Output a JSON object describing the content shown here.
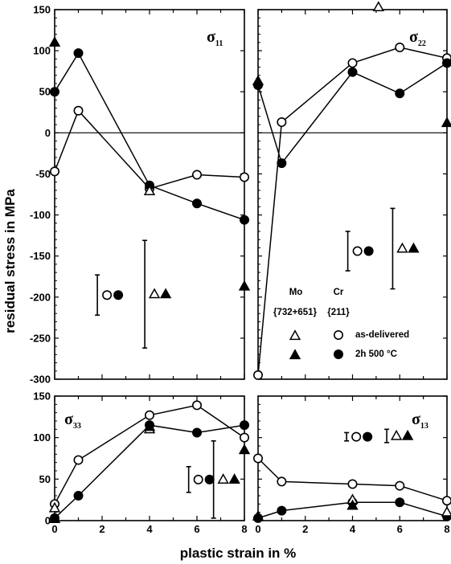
{
  "figure": {
    "ylabel": "residual stress in MPa",
    "xlabel": "plastic strain in %"
  },
  "legend": {
    "col1_header": "Mo",
    "col1_sub": "{732+651}",
    "col2_header": "Cr",
    "col2_sub": "{211}",
    "row1_label": "as-delivered",
    "row2_label": "2h   500 °C"
  },
  "chart_data": [
    {
      "type": "line",
      "panel": "sigma11",
      "title": "σ",
      "title_sub": "11",
      "xlim": [
        0,
        8
      ],
      "ylim": [
        -300,
        150
      ],
      "xticks": [],
      "yticks": [
        150,
        100,
        50,
        0,
        -50,
        -100,
        -150,
        -200,
        -250,
        -300
      ],
      "series": [
        {
          "marker": "open-circle",
          "line": true,
          "x": [
            0,
            1,
            4,
            6,
            8
          ],
          "y": [
            -47,
            27,
            -68,
            -51,
            -54
          ]
        },
        {
          "marker": "filled-circle",
          "line": true,
          "x": [
            0,
            1,
            4,
            6,
            8
          ],
          "y": [
            50,
            97,
            -64,
            -86,
            -106
          ]
        },
        {
          "marker": "open-triangle",
          "line": false,
          "x": [
            4
          ],
          "y": [
            -71
          ]
        },
        {
          "marker": "filled-triangle",
          "line": false,
          "x": [
            0,
            8
          ],
          "y": [
            110,
            -187
          ]
        }
      ],
      "error_bars": [
        {
          "x": 1.8,
          "ylo": -222,
          "yhi": -173,
          "markers": [
            "open-circle",
            "filled-circle"
          ]
        },
        {
          "x": 3.8,
          "ylo": -262,
          "yhi": -131,
          "markers": [
            "open-triangle",
            "filled-triangle"
          ]
        }
      ]
    },
    {
      "type": "line",
      "panel": "sigma22",
      "title": "σ",
      "title_sub": "22",
      "xlim": [
        0,
        8
      ],
      "ylim": [
        -300,
        150
      ],
      "xticks": [],
      "yticks": [],
      "series": [
        {
          "marker": "open-circle",
          "line": true,
          "x": [
            0,
            1,
            4,
            6,
            8
          ],
          "y": [
            -295,
            13,
            85,
            104,
            91
          ]
        },
        {
          "marker": "filled-circle",
          "line": true,
          "x": [
            0,
            1,
            4,
            6,
            8
          ],
          "y": [
            58,
            -37,
            74,
            48,
            85
          ]
        },
        {
          "marker": "open-triangle",
          "line": false,
          "x": [
            5.1
          ],
          "y": [
            153
          ]
        },
        {
          "marker": "filled-triangle",
          "line": false,
          "x": [
            0,
            8
          ],
          "y": [
            63,
            12
          ]
        }
      ],
      "error_bars": [
        {
          "x": 3.8,
          "ylo": -168,
          "yhi": -120,
          "markers": [
            "open-circle",
            "filled-circle"
          ]
        },
        {
          "x": 5.7,
          "ylo": -190,
          "yhi": -92,
          "markers": [
            "open-triangle",
            "filled-triangle"
          ]
        }
      ]
    },
    {
      "type": "line",
      "panel": "sigma33",
      "title": "σ",
      "title_sub": "33",
      "xlim": [
        0,
        8
      ],
      "ylim": [
        0,
        150
      ],
      "xticks": [
        0,
        2,
        4,
        6,
        8
      ],
      "yticks": [
        150,
        100,
        50,
        0
      ],
      "series": [
        {
          "marker": "open-circle",
          "line": true,
          "x": [
            0,
            1,
            4,
            6,
            8
          ],
          "y": [
            20,
            73,
            127,
            139,
            100
          ]
        },
        {
          "marker": "filled-circle",
          "line": true,
          "x": [
            0,
            1,
            4,
            6,
            8
          ],
          "y": [
            3,
            30,
            115,
            106,
            115
          ]
        },
        {
          "marker": "open-triangle",
          "line": false,
          "x": [
            0,
            4
          ],
          "y": [
            15,
            110
          ]
        },
        {
          "marker": "filled-triangle",
          "line": false,
          "x": [
            0,
            4,
            8
          ],
          "y": [
            2,
            113,
            85
          ]
        }
      ],
      "error_bars": [
        {
          "x": 5.65,
          "ylo": 34,
          "yhi": 65,
          "markers": [
            "open-circle",
            "filled-circle"
          ]
        },
        {
          "x": 6.7,
          "ylo": 3,
          "yhi": 96,
          "markers": [
            "open-triangle",
            "filled-triangle"
          ]
        }
      ]
    },
    {
      "type": "line",
      "panel": "sigma13",
      "title": "σ",
      "title_sub": "13",
      "xlim": [
        0,
        8
      ],
      "ylim": [
        0,
        150
      ],
      "xticks": [
        0,
        2,
        4,
        6,
        8
      ],
      "yticks": [],
      "series": [
        {
          "marker": "open-circle",
          "line": true,
          "x": [
            0,
            1,
            4,
            6,
            8
          ],
          "y": [
            75,
            47,
            44,
            42,
            24
          ]
        },
        {
          "marker": "filled-circle",
          "line": true,
          "x": [
            0,
            1,
            4,
            6,
            8
          ],
          "y": [
            3,
            12,
            22,
            22,
            5
          ]
        },
        {
          "marker": "open-triangle",
          "line": false,
          "x": [
            4,
            8
          ],
          "y": [
            25,
            10
          ]
        },
        {
          "marker": "filled-triangle",
          "line": false,
          "x": [
            0,
            4
          ],
          "y": [
            5,
            18
          ]
        }
      ],
      "error_bars": [
        {
          "x": 3.75,
          "ylo": 96,
          "yhi": 106,
          "markers": [
            "open-circle",
            "filled-circle"
          ]
        },
        {
          "x": 5.45,
          "ylo": 94,
          "yhi": 110,
          "markers": [
            "open-triangle",
            "filled-triangle"
          ]
        }
      ]
    }
  ]
}
